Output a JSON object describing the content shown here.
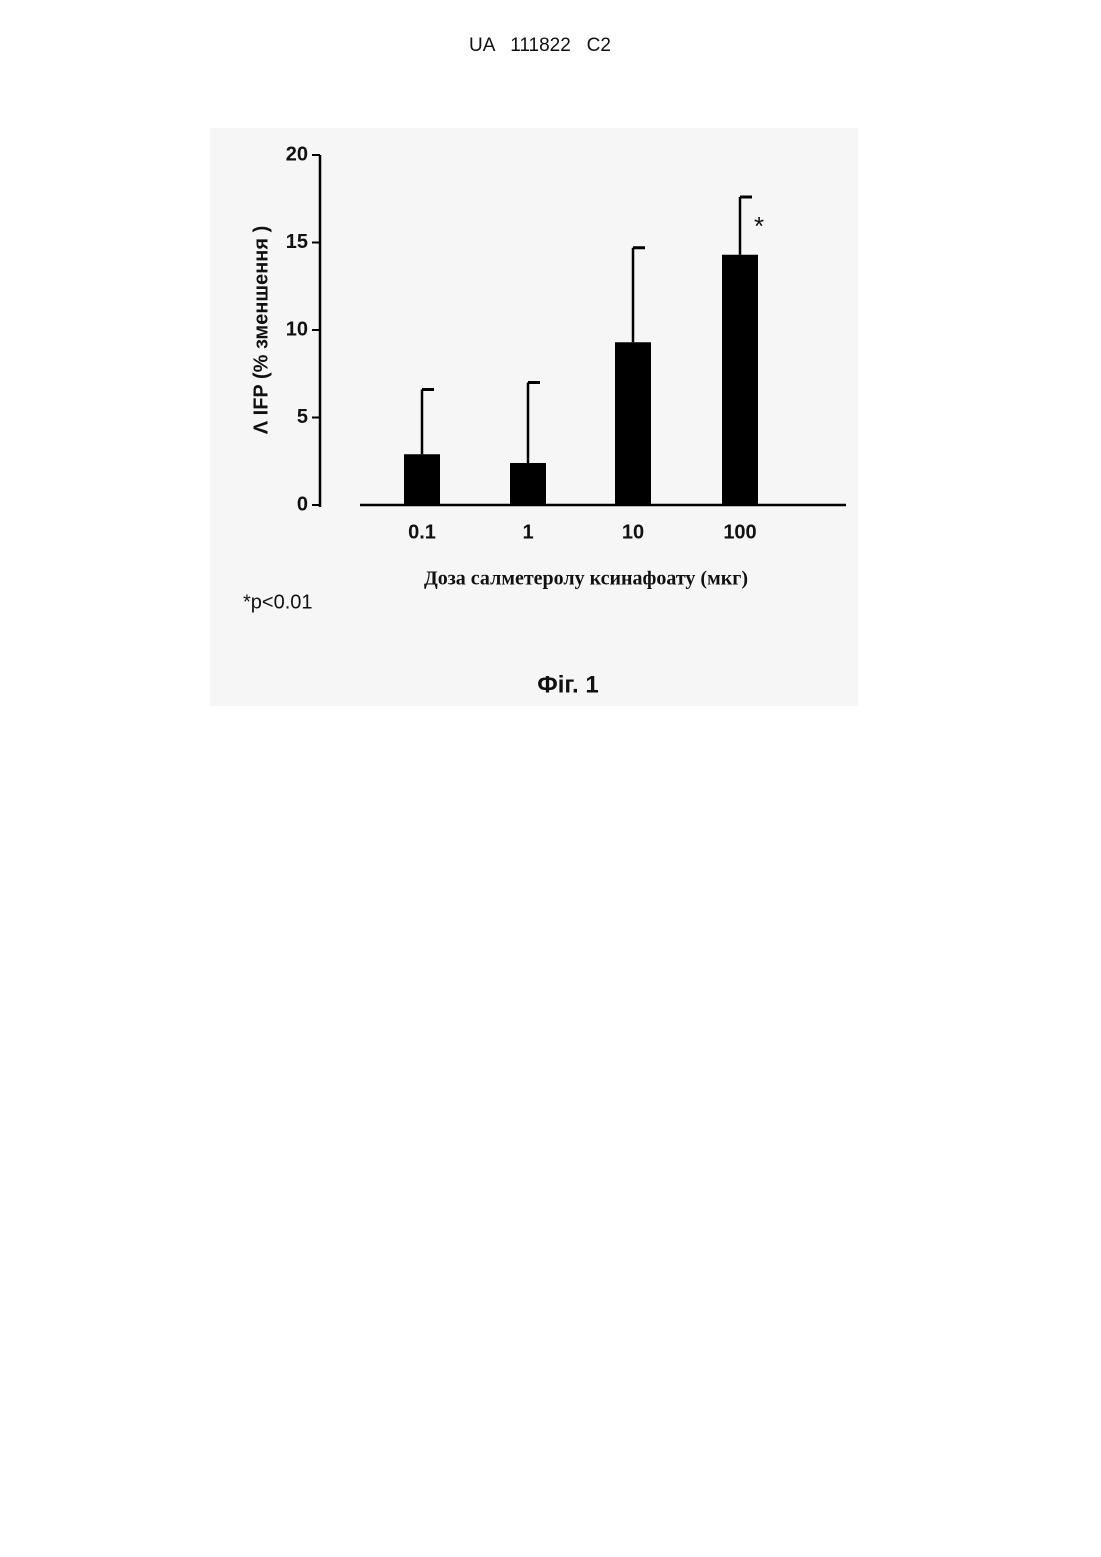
{
  "header": "UA   111822   C2",
  "chart_data": {
    "type": "bar",
    "categories": [
      "0.1",
      "1",
      "10",
      "100"
    ],
    "values": [
      2.9,
      2.4,
      9.3,
      14.3
    ],
    "errors": [
      3.7,
      4.6,
      5.4,
      3.3
    ],
    "color": "#000000",
    "ylim": [
      0,
      20
    ],
    "yticks": [
      0,
      5,
      10,
      15,
      20
    ],
    "ylabel": "Λ IFP (% зменшення )",
    "xlabel": "Доза салметеролу ксинафоату (мкг)",
    "annotation": "*",
    "note": "*p<0.01",
    "caption": "Фіг. 1"
  }
}
